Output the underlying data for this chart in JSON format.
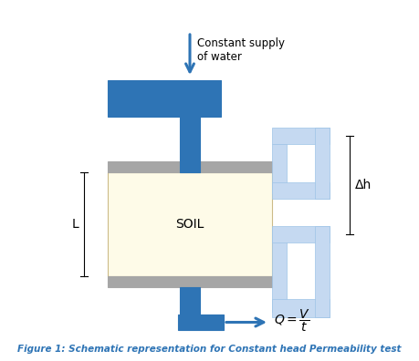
{
  "title": "Figure 1: Schematic representation for Constant head Permeability test",
  "title_color": "#2E74B5",
  "title_fontsize": 7.5,
  "bg_color": "#ffffff",
  "blue_dark": "#2E74B5",
  "blue_light": "#C5D9F1",
  "blue_light_border": "#9DC3E6",
  "gray": "#A6A6A6",
  "soil_color": "#FEFBE8",
  "text_color": "#000000",
  "supply_label": "Constant supply\nof water",
  "soil_label": "SOIL",
  "L_label": "L",
  "dh_label": "Δh",
  "figsize": [
    4.59,
    3.96
  ],
  "dpi": 100
}
